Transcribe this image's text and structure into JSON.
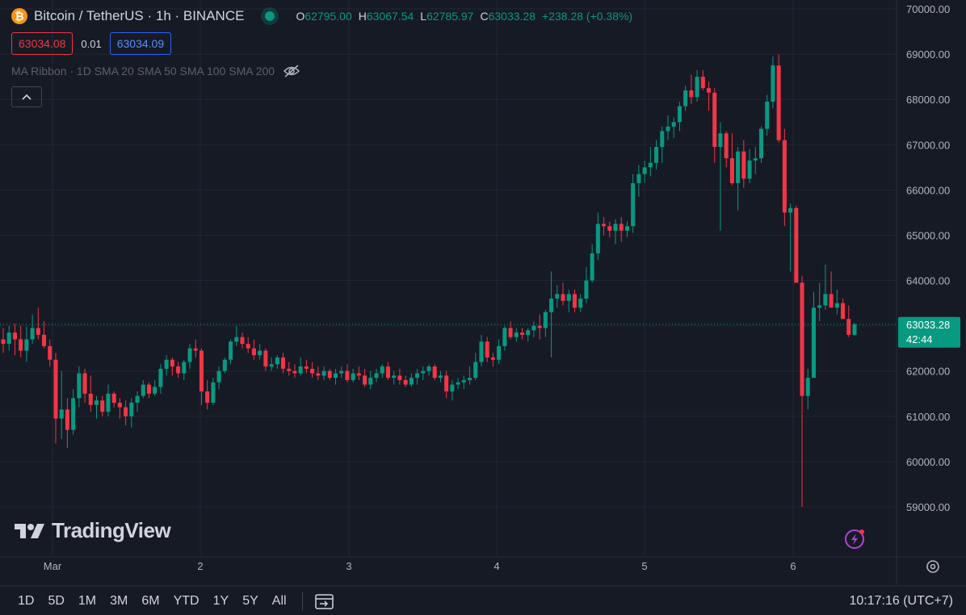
{
  "header": {
    "coin_glyph": "₿",
    "title": "Bitcoin / TetherUS · 1h · BINANCE",
    "ohlc": {
      "o_label": "O",
      "o_value": "62795.00",
      "h_label": "H",
      "h_value": "63067.54",
      "l_label": "L",
      "l_value": "62785.97",
      "c_label": "C",
      "c_value": "63033.28",
      "change": "+238.28 (+0.38%)"
    }
  },
  "quote": {
    "sell": "63034.08",
    "spread": "0.01",
    "buy": "63034.09"
  },
  "indicator": {
    "label": "MA Ribbon · 1D SMA 20 SMA 50 SMA 100 SMA 200"
  },
  "logo": {
    "text": "TradingView"
  },
  "timeframes": [
    "1D",
    "5D",
    "1M",
    "3M",
    "6M",
    "YTD",
    "1Y",
    "5Y",
    "All"
  ],
  "clock": "10:17:16 (UTC+7)",
  "colors": {
    "bg": "#161a25",
    "up": "#089981",
    "down": "#f23645",
    "grid": "#232632",
    "text": "#b2b5be"
  },
  "chart_data": {
    "type": "candlestick",
    "y_ticks": [
      "70000.00",
      "69000.00",
      "68000.00",
      "67000.00",
      "66000.00",
      "65000.00",
      "64000.00",
      "63000.00",
      "62000.00",
      "61000.00",
      "60000.00",
      "59000.00"
    ],
    "x_ticks": [
      "Mar",
      "2",
      "3",
      "4",
      "5",
      "6"
    ],
    "ylim": [
      58600,
      70200
    ],
    "last_price": "63033.28",
    "countdown": "42:44",
    "candles": [
      [
        62700,
        62950,
        62400,
        62600
      ],
      [
        62600,
        63000,
        62450,
        62850
      ],
      [
        62850,
        63050,
        62350,
        62700
      ],
      [
        62700,
        63000,
        62300,
        62450
      ],
      [
        62450,
        62980,
        62200,
        62700
      ],
      [
        62700,
        63250,
        62600,
        62950
      ],
      [
        62950,
        63400,
        62700,
        62800
      ],
      [
        62800,
        63100,
        62500,
        62550
      ],
      [
        62550,
        62700,
        62100,
        62250
      ],
      [
        62250,
        62400,
        60400,
        60950
      ],
      [
        60950,
        62000,
        60500,
        61150
      ],
      [
        61150,
        61400,
        60300,
        60700
      ],
      [
        60700,
        61600,
        60600,
        61400
      ],
      [
        61400,
        62100,
        61200,
        61950
      ],
      [
        61950,
        62050,
        61300,
        61500
      ],
      [
        61500,
        61900,
        61100,
        61250
      ],
      [
        61250,
        61450,
        60950,
        61350
      ],
      [
        61350,
        61450,
        61000,
        61100
      ],
      [
        61100,
        61700,
        61000,
        61500
      ],
      [
        61500,
        61550,
        61200,
        61300
      ],
      [
        61300,
        61400,
        60950,
        61200
      ],
      [
        61200,
        61350,
        60800,
        61000
      ],
      [
        61000,
        61400,
        60750,
        61300
      ],
      [
        61300,
        61550,
        61100,
        61450
      ],
      [
        61450,
        61800,
        61400,
        61700
      ],
      [
        61700,
        61750,
        61400,
        61500
      ],
      [
        61500,
        61800,
        61450,
        61650
      ],
      [
        61650,
        62150,
        61500,
        62050
      ],
      [
        62050,
        62350,
        61900,
        62250
      ],
      [
        62250,
        62300,
        61900,
        62100
      ],
      [
        62100,
        62200,
        61850,
        61950
      ],
      [
        61950,
        62250,
        61800,
        62200
      ],
      [
        62200,
        62600,
        62050,
        62500
      ],
      [
        62500,
        62700,
        62300,
        62450
      ],
      [
        62450,
        62500,
        61250,
        61550
      ],
      [
        61550,
        61800,
        61150,
        61300
      ],
      [
        61300,
        61850,
        61250,
        61750
      ],
      [
        61750,
        62100,
        61600,
        62000
      ],
      [
        62000,
        62300,
        61950,
        62250
      ],
      [
        62250,
        62700,
        62150,
        62650
      ],
      [
        62650,
        63000,
        62550,
        62750
      ],
      [
        62750,
        62850,
        62500,
        62600
      ],
      [
        62600,
        62750,
        62400,
        62500
      ],
      [
        62500,
        62700,
        62250,
        62350
      ],
      [
        62350,
        62600,
        62250,
        62450
      ],
      [
        62450,
        62500,
        62000,
        62100
      ],
      [
        62100,
        62300,
        62000,
        62150
      ],
      [
        62150,
        62350,
        62050,
        62300
      ],
      [
        62300,
        62400,
        61950,
        62050
      ],
      [
        62050,
        62200,
        61900,
        62000
      ],
      [
        62000,
        62150,
        61850,
        61950
      ],
      [
        61950,
        62300,
        61900,
        62100
      ],
      [
        62100,
        62250,
        61950,
        62050
      ],
      [
        62050,
        62200,
        61850,
        61950
      ],
      [
        61950,
        62100,
        61800,
        61900
      ],
      [
        61900,
        62100,
        61800,
        62000
      ],
      [
        62000,
        62050,
        61800,
        61850
      ],
      [
        61850,
        62050,
        61700,
        61950
      ],
      [
        61950,
        62100,
        61850,
        62000
      ],
      [
        62000,
        62150,
        61750,
        61800
      ],
      [
        61800,
        62050,
        61750,
        61950
      ],
      [
        61950,
        62100,
        61800,
        61900
      ],
      [
        61900,
        62050,
        61650,
        61700
      ],
      [
        61700,
        62000,
        61600,
        61850
      ],
      [
        61850,
        62050,
        61750,
        61950
      ],
      [
        61950,
        62150,
        61850,
        62100
      ],
      [
        62100,
        62200,
        61800,
        61850
      ],
      [
        61850,
        62000,
        61700,
        61900
      ],
      [
        61900,
        62050,
        61700,
        61800
      ],
      [
        61800,
        61900,
        61650,
        61700
      ],
      [
        61700,
        61950,
        61650,
        61850
      ],
      [
        61850,
        62050,
        61700,
        61950
      ],
      [
        61950,
        62100,
        61800,
        62000
      ],
      [
        62000,
        62150,
        61900,
        62100
      ],
      [
        62100,
        62150,
        61800,
        61850
      ],
      [
        61850,
        62000,
        61750,
        61900
      ],
      [
        61900,
        62000,
        61400,
        61550
      ],
      [
        61550,
        61800,
        61350,
        61700
      ],
      [
        61700,
        61850,
        61600,
        61750
      ],
      [
        61750,
        61900,
        61600,
        61800
      ],
      [
        61800,
        62100,
        61700,
        61850
      ],
      [
        61850,
        62400,
        61800,
        62200
      ],
      [
        62200,
        62800,
        62100,
        62650
      ],
      [
        62650,
        62750,
        62200,
        62300
      ],
      [
        62300,
        62400,
        62100,
        62250
      ],
      [
        62250,
        62700,
        62150,
        62550
      ],
      [
        62550,
        63000,
        62450,
        62950
      ],
      [
        62950,
        63100,
        62700,
        62750
      ],
      [
        62750,
        62950,
        62650,
        62850
      ],
      [
        62850,
        62950,
        62700,
        62800
      ],
      [
        62800,
        62950,
        62650,
        62900
      ],
      [
        62900,
        63100,
        62750,
        63000
      ],
      [
        63000,
        63250,
        62700,
        62950
      ],
      [
        62950,
        63350,
        62750,
        63300
      ],
      [
        63300,
        64200,
        62300,
        63600
      ],
      [
        63600,
        63900,
        63400,
        63700
      ],
      [
        63700,
        63950,
        63450,
        63550
      ],
      [
        63550,
        63800,
        63300,
        63700
      ],
      [
        63700,
        63800,
        63300,
        63400
      ],
      [
        63400,
        63700,
        63300,
        63600
      ],
      [
        63600,
        64300,
        63500,
        64000
      ],
      [
        64000,
        64800,
        63950,
        64600
      ],
      [
        64600,
        65500,
        64450,
        65250
      ],
      [
        65250,
        65400,
        65000,
        65200
      ],
      [
        65200,
        65300,
        64950,
        65100
      ],
      [
        65100,
        65350,
        64800,
        65250
      ],
      [
        65250,
        65400,
        64850,
        65100
      ],
      [
        65100,
        65300,
        64950,
        65200
      ],
      [
        65200,
        66350,
        65050,
        66150
      ],
      [
        66150,
        66550,
        65850,
        66350
      ],
      [
        66350,
        66650,
        66150,
        66500
      ],
      [
        66500,
        66950,
        66300,
        66600
      ],
      [
        66600,
        67100,
        66450,
        66950
      ],
      [
        66950,
        67400,
        66600,
        67300
      ],
      [
        67300,
        67650,
        67100,
        67400
      ],
      [
        67400,
        67600,
        67150,
        67500
      ],
      [
        67500,
        67950,
        67300,
        67850
      ],
      [
        67850,
        68300,
        67750,
        68200
      ],
      [
        68200,
        68550,
        67900,
        68050
      ],
      [
        68050,
        68650,
        67950,
        68500
      ],
      [
        68500,
        68650,
        68200,
        68250
      ],
      [
        68250,
        68400,
        67750,
        68150
      ],
      [
        68150,
        68250,
        66600,
        66950
      ],
      [
        66950,
        67500,
        65100,
        67250
      ],
      [
        67250,
        67300,
        66500,
        66700
      ],
      [
        66700,
        67250,
        66100,
        66150
      ],
      [
        66150,
        66950,
        65550,
        66850
      ],
      [
        66850,
        67100,
        66050,
        66250
      ],
      [
        66250,
        66900,
        66150,
        66650
      ],
      [
        66650,
        66950,
        66350,
        66700
      ],
      [
        66700,
        67400,
        66600,
        67350
      ],
      [
        67350,
        68100,
        67200,
        67950
      ],
      [
        67950,
        68950,
        67800,
        68750
      ],
      [
        68750,
        69000,
        67050,
        67100
      ],
      [
        67100,
        67350,
        65200,
        65500
      ],
      [
        65500,
        65700,
        64200,
        65600
      ],
      [
        65600,
        65650,
        64000,
        63950
      ],
      [
        63950,
        64100,
        59000,
        61450
      ],
      [
        61450,
        62050,
        61150,
        61850
      ],
      [
        61850,
        63750,
        61850,
        63400
      ],
      [
        63400,
        63950,
        63100,
        63450
      ],
      [
        63450,
        64350,
        63350,
        63700
      ],
      [
        63700,
        64200,
        63450,
        63400
      ],
      [
        63400,
        63800,
        63250,
        63500
      ],
      [
        63500,
        63600,
        63150,
        63150
      ],
      [
        63150,
        63450,
        62750,
        62800
      ],
      [
        62795,
        63068,
        62786,
        63033
      ]
    ]
  }
}
